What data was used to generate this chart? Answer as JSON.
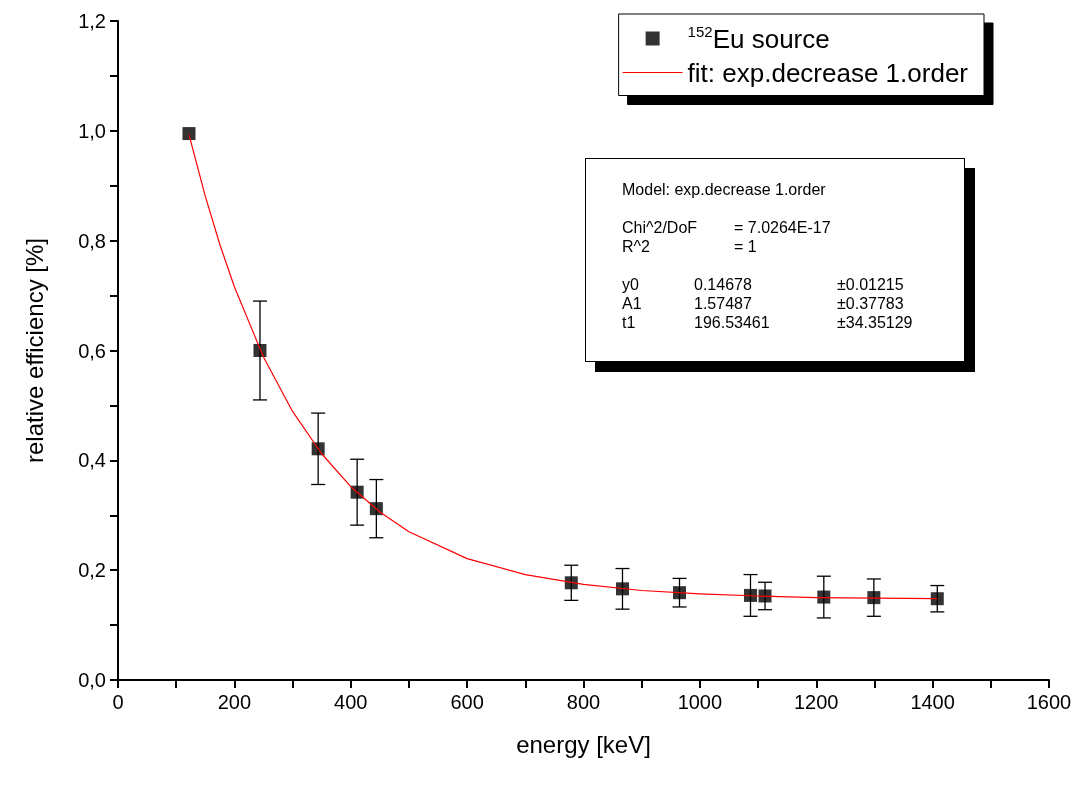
{
  "chart_data": {
    "type": "scatter",
    "xlabel": "energy [keV]",
    "ylabel": "relative efficiency [%]",
    "xlim": [
      0,
      1600
    ],
    "xticks": [
      0,
      {
        "value": 100,
        "label": null
      },
      200,
      {
        "value": 300,
        "label": null
      },
      400,
      {
        "value": 500,
        "label": null
      },
      600,
      {
        "value": 700,
        "label": null
      },
      800,
      {
        "value": 900,
        "label": null
      },
      1000,
      {
        "value": 1100,
        "label": null
      },
      1200,
      {
        "value": 1300,
        "label": null
      },
      1400,
      {
        "value": 1500,
        "label": null
      },
      1600
    ],
    "ylim": [
      0,
      1.2
    ],
    "yticks": [
      {
        "value": 0,
        "label": "0,0"
      },
      {
        "value": 0.1,
        "label": null
      },
      {
        "value": 0.2,
        "label": "0,2"
      },
      {
        "value": 0.3,
        "label": null
      },
      {
        "value": 0.4,
        "label": "0,4"
      },
      {
        "value": 0.5,
        "label": null
      },
      {
        "value": 0.6,
        "label": "0,6"
      },
      {
        "value": 0.7,
        "label": null
      },
      {
        "value": 0.8,
        "label": "0,8"
      },
      {
        "value": 0.9,
        "label": null
      },
      {
        "value": 1,
        "label": "1,0"
      },
      {
        "value": 1.1,
        "label": null
      },
      {
        "value": 1.2,
        "label": "1,2"
      }
    ],
    "grid": false,
    "legend": "top right",
    "marker": "square",
    "annotations": [
      "Model: exp.decrease 1.order\n\nChi^2/DoF  = 7.0264E-17\nR^2  = 1\n\ny0  0.14678  ±0.01215\nA1  1.57487  ±0.37783\nt1  196.53461  ±34.35129"
    ],
    "series": [
      {
        "name": "$^{152}$Eu source",
        "color": "#000000",
        "x": [
          122,
          244,
          344,
          411,
          444,
          779,
          867,
          965,
          1087,
          1112,
          1213,
          1299,
          1408
        ],
        "values": [
          0.995,
          0.6,
          0.421,
          0.342,
          0.312,
          0.177,
          0.166,
          0.159,
          0.154,
          0.153,
          0.151,
          0.15,
          0.148
        ],
        "errors": [
          null,
          0.09,
          0.065,
          0.06,
          0.053,
          0.032,
          0.037,
          0.026,
          0.038,
          0.025,
          0.038,
          0.034,
          0.024
        ]
      },
      {
        "name": "fit: exp.decrease 1.order",
        "type": "line",
        "color": "#ff0000",
        "marker": "none",
        "x": [
          122,
          150,
          175,
          200,
          250,
          300,
          350,
          400,
          450,
          500,
          600,
          700,
          800,
          900,
          1000,
          1100,
          1200,
          1300,
          1408
        ],
        "values": [
          0.993,
          0.881,
          0.793,
          0.716,
          0.588,
          0.489,
          0.412,
          0.352,
          0.306,
          0.27,
          0.221,
          0.192,
          0.174,
          0.163,
          0.157,
          0.153,
          0.15,
          0.149,
          0.148
        ]
      }
    ]
  }
}
